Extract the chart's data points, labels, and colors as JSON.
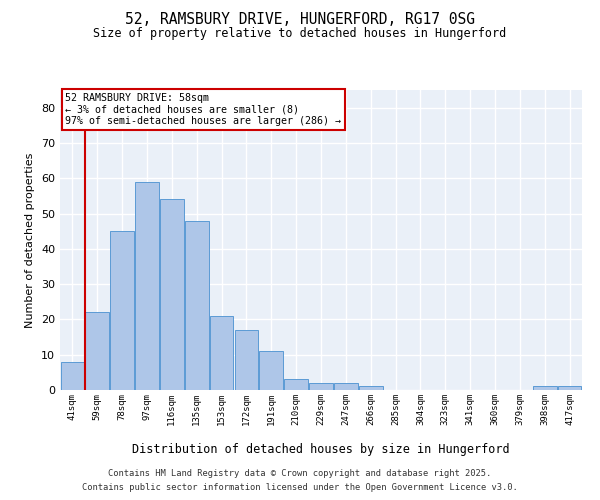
{
  "title1": "52, RAMSBURY DRIVE, HUNGERFORD, RG17 0SG",
  "title2": "Size of property relative to detached houses in Hungerford",
  "xlabel": "Distribution of detached houses by size in Hungerford",
  "ylabel": "Number of detached properties",
  "bins": [
    "41sqm",
    "59sqm",
    "78sqm",
    "97sqm",
    "116sqm",
    "135sqm",
    "153sqm",
    "172sqm",
    "191sqm",
    "210sqm",
    "229sqm",
    "247sqm",
    "266sqm",
    "285sqm",
    "304sqm",
    "323sqm",
    "341sqm",
    "360sqm",
    "379sqm",
    "398sqm",
    "417sqm"
  ],
  "values": [
    8,
    22,
    45,
    59,
    54,
    48,
    21,
    17,
    11,
    3,
    2,
    2,
    1,
    0,
    0,
    0,
    0,
    0,
    0,
    1,
    1
  ],
  "highlight_bin_index": 1,
  "bar_color": "#aec6e8",
  "bar_edge_color": "#5b9bd5",
  "highlight_color": "#cc0000",
  "annotation_text": "52 RAMSBURY DRIVE: 58sqm\n← 3% of detached houses are smaller (8)\n97% of semi-detached houses are larger (286) →",
  "annotation_box_color": "#ffffff",
  "annotation_box_edge": "#cc0000",
  "footer1": "Contains HM Land Registry data © Crown copyright and database right 2025.",
  "footer2": "Contains public sector information licensed under the Open Government Licence v3.0.",
  "ylim": [
    0,
    85
  ],
  "yticks": [
    0,
    10,
    20,
    30,
    40,
    50,
    60,
    70,
    80
  ],
  "bg_color": "#eaf0f8",
  "grid_color": "#ffffff",
  "fig_bg": "#ffffff"
}
